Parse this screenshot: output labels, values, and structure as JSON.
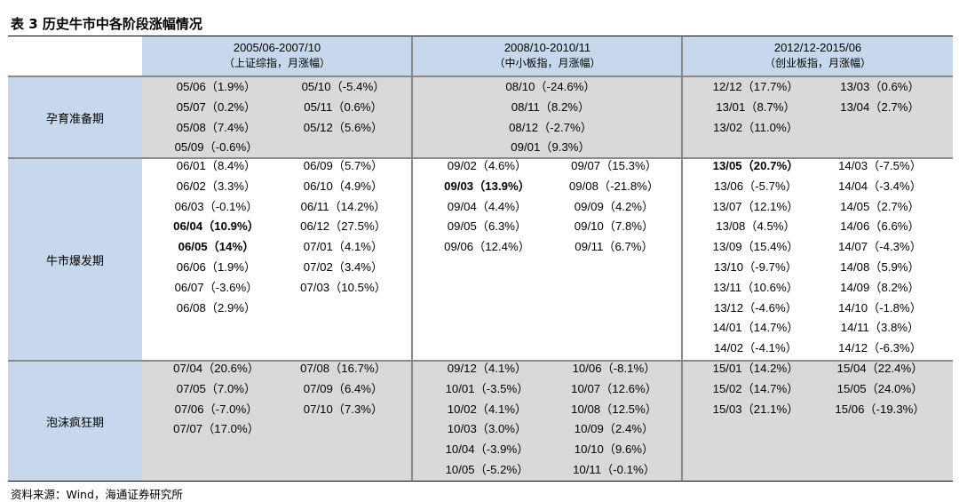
{
  "title": "表 3  历史牛市中各阶段涨幅情况",
  "source": "资料来源：Wind，海通证券研究所",
  "headers": [
    {
      "period": "2005/06-2007/10",
      "index": "（上证综指，月涨幅）"
    },
    {
      "period": "2008/10-2010/11",
      "index": "（中小板指，月涨幅）"
    },
    {
      "period": "2012/12-2015/06",
      "index": "（创业板指，月涨幅）"
    }
  ],
  "rows": [
    {
      "label": "孕育准备期",
      "cells": [
        {
          "cols": [
            [
              "05/06（1.9%）",
              "05/07（0.2%）",
              "05/08（7.4%）",
              "05/09（-0.6%）"
            ],
            [
              "05/10（-5.4%）",
              "05/11（0.6%）",
              "05/12（5.6%）"
            ]
          ],
          "bold": []
        },
        {
          "cols": [
            [
              "08/10（-24.6%）",
              "08/11（8.2%）",
              "08/12（-2.7%）",
              "09/01（9.3%）"
            ]
          ],
          "bold": []
        },
        {
          "cols": [
            [
              "12/12（17.7%）",
              "13/01（8.7%）",
              "13/02（11.0%）"
            ],
            [
              "13/03（0.6%）",
              "13/04（2.7%）"
            ]
          ],
          "bold": []
        }
      ]
    },
    {
      "label": "牛市爆发期",
      "cells": [
        {
          "cols": [
            [
              "06/01（8.4%）",
              "06/02（3.3%）",
              "06/03（-0.1%）",
              "06/04（10.9%）",
              "06/05（14%）",
              "06/06（1.9%）",
              "06/07（-3.6%）",
              "06/08（2.9%）"
            ],
            [
              "06/09（5.7%）",
              "06/10（4.9%）",
              "06/11（14.2%）",
              "06/12（27.5%）",
              "07/01（4.1%）",
              "07/02（3.4%）",
              "07/03（10.5%）"
            ]
          ],
          "bold": [
            "06/04（10.9%）",
            "06/05（14%）"
          ]
        },
        {
          "cols": [
            [
              "09/02（4.6%）",
              "09/03（13.9%）",
              "09/04（4.4%）",
              "09/05（6.3%）",
              "09/06（12.4%）"
            ],
            [
              "09/07（15.3%）",
              "09/08（-21.8%）",
              "09/09（4.2%）",
              "09/10（7.8%）",
              "09/11（6.7%）"
            ]
          ],
          "bold": [
            "09/03（13.9%）"
          ]
        },
        {
          "cols": [
            [
              "13/05（20.7%）",
              "13/06（-5.7%）",
              "13/07（12.1%）",
              "13/08（4.5%）",
              "13/09（15.4%）",
              "13/10（-9.7%）",
              "13/11（10.6%）",
              "13/12（-4.6%）",
              "14/01（14.7%）",
              "14/02（-4.1%）"
            ],
            [
              "14/03（-7.5%）",
              "14/04（-3.4%）",
              "14/05（2.7%）",
              "14/06（6.6%）",
              "14/07（-4.3%）",
              "14/08（5.9%）",
              "14/09（8.2%）",
              "14/10（-1.8%）",
              "14/11（3.8%）",
              "14/12（-6.3%）"
            ]
          ],
          "bold": [
            "13/05（20.7%）"
          ]
        }
      ]
    },
    {
      "label": "泡沫疯狂期",
      "cells": [
        {
          "cols": [
            [
              "07/04（20.6%）",
              "07/05（7.0%）",
              "07/06（-7.0%）",
              "07/07（17.0%）"
            ],
            [
              "07/08（16.7%）",
              "07/09（6.4%）",
              "07/10（7.3%）"
            ]
          ],
          "bold": []
        },
        {
          "cols": [
            [
              "09/12（4.1%）",
              "10/01（-3.5%）",
              "10/02（4.1%）",
              "10/03（3.0%）",
              "10/04（-3.9%）",
              "10/05（-5.2%）"
            ],
            [
              "10/06（-8.1%）",
              "10/07（12.6%）",
              "10/08（12.5%）",
              "10/09（2.4%）",
              "10/10（9.6%）",
              "10/11（-0.1%）"
            ]
          ],
          "bold": []
        },
        {
          "cols": [
            [
              "15/01（14.2%）",
              "15/02（14.7%）",
              "15/03（21.1%）"
            ],
            [
              "15/04（22.4%）",
              "15/05（24.0%）",
              "15/06（-19.3%）"
            ]
          ],
          "bold": []
        }
      ]
    }
  ]
}
